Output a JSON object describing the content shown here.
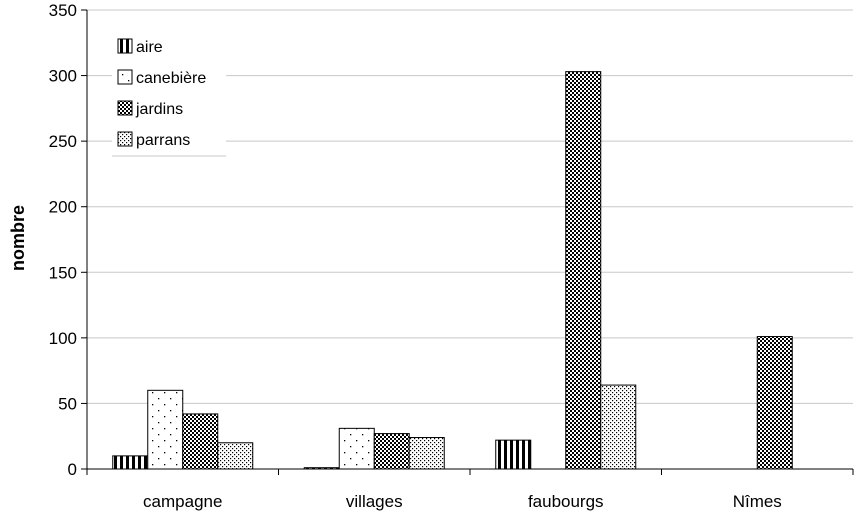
{
  "chart_data": {
    "type": "bar",
    "title": "",
    "xlabel": "",
    "ylabel": "nombre",
    "ylim": [
      0,
      350
    ],
    "yticks": [
      0,
      50,
      100,
      150,
      200,
      250,
      300,
      350
    ],
    "categories": [
      "campagne",
      "villages",
      "faubourgs",
      "Nîmes"
    ],
    "series": [
      {
        "name": "aire",
        "values": [
          10,
          1,
          22,
          0
        ],
        "pattern": "vertical-stripes"
      },
      {
        "name": "canebière",
        "values": [
          60,
          31,
          0,
          0
        ],
        "pattern": "sparse-dots"
      },
      {
        "name": "jardins",
        "values": [
          42,
          27,
          303,
          101
        ],
        "pattern": "checkerboard"
      },
      {
        "name": "parrans",
        "values": [
          20,
          24,
          64,
          0
        ],
        "pattern": "dense-dots"
      }
    ],
    "grid": true,
    "legend_position": "top-left"
  }
}
